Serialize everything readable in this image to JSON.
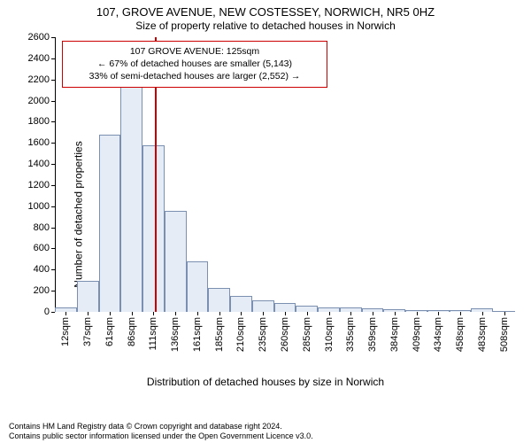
{
  "title": {
    "line1": "107, GROVE AVENUE, NEW COSTESSEY, NORWICH, NR5 0HZ",
    "line2": "Size of property relative to detached houses in Norwich",
    "fontsize_main": 13,
    "fontsize_sub": 12
  },
  "chart": {
    "type": "histogram",
    "background_color": "#ffffff",
    "axis_color": "#000000",
    "bar_fill": "#e5ecf6",
    "bar_stroke": "#7b90b0",
    "bar_stroke_width": 1,
    "ylim": [
      0,
      2600
    ],
    "ytick_step": 200,
    "ylabel": "Number of detached properties",
    "xlabel": "Distribution of detached houses by size in Norwich",
    "label_fontsize": 12,
    "tick_fontsize": 11,
    "x_categories": [
      "12sqm",
      "37sqm",
      "61sqm",
      "86sqm",
      "111sqm",
      "136sqm",
      "161sqm",
      "185sqm",
      "210sqm",
      "235sqm",
      "260sqm",
      "285sqm",
      "310sqm",
      "335sqm",
      "359sqm",
      "384sqm",
      "409sqm",
      "434sqm",
      "458sqm",
      "483sqm",
      "508sqm"
    ],
    "values": [
      40,
      290,
      1680,
      2140,
      1580,
      960,
      480,
      230,
      150,
      110,
      80,
      60,
      45,
      40,
      30,
      25,
      20,
      18,
      15,
      35,
      10
    ],
    "marker": {
      "position_index": 4.6,
      "color": "#cc0000",
      "width": 2
    },
    "annotation": {
      "line1": "107 GROVE AVENUE: 125sqm",
      "line2": "← 67% of detached houses are smaller (5,143)",
      "line3": "33% of semi-detached houses are larger (2,552) →",
      "border_color": "#cc0000",
      "bg_color": "#ffffff",
      "fontsize": 10.5
    }
  },
  "footer": {
    "line1": "Contains HM Land Registry data © Crown copyright and database right 2024.",
    "line2": "Contains public sector information licensed under the Open Government Licence v3.0.",
    "fontsize": 9
  }
}
